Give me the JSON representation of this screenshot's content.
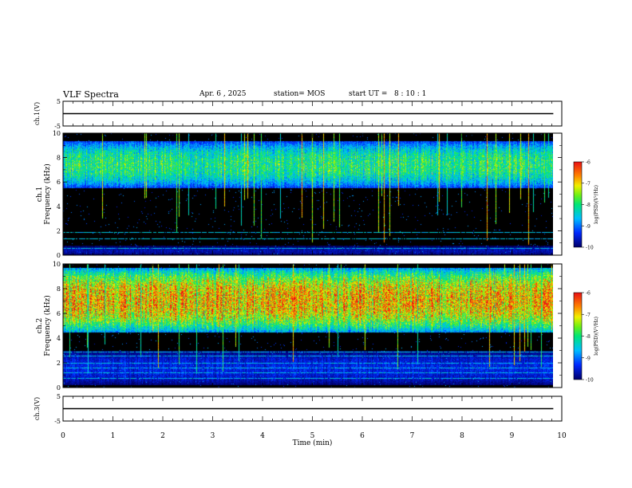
{
  "header": {
    "title": "VLF Spectra",
    "date": "Apr. 6 , 2025",
    "station": "station= MOS",
    "start": "start UT =   8 : 10 : 1"
  },
  "chart_data": [
    {
      "type": "line",
      "panel": "ch1-waveform",
      "ylabel": "ch.1(V)",
      "ylim": [
        -5,
        5
      ],
      "yticks": [
        "5",
        "-5"
      ],
      "series": [
        {
          "x": [
            0,
            9.83
          ],
          "y": [
            0,
            0
          ]
        }
      ]
    },
    {
      "type": "heatmap",
      "panel": "ch1-spectrogram",
      "ylabel": "ch.1 Frequency (kHz)",
      "ylim": [
        0,
        10
      ],
      "yticks": [
        "0",
        "2",
        "4",
        "6",
        "8",
        "10"
      ],
      "xlim": [
        0,
        10
      ],
      "data_end_min": 9.83,
      "bands": [
        {
          "from_khz": 5.5,
          "to_khz": 9.4,
          "peak": 0.62
        },
        {
          "from_khz": 0.0,
          "to_khz": 0.8,
          "peak": 0.18
        }
      ],
      "lines_khz": [
        0.6,
        1.4,
        1.9
      ],
      "colorbar": {
        "label": "log(PSD)(V²/Hz)",
        "min": -10,
        "max": -6,
        "ticks": [
          "-6",
          "-7",
          "-8",
          "-9",
          "-10"
        ]
      }
    },
    {
      "type": "heatmap",
      "panel": "ch2-spectrogram",
      "ylabel": "ch.2 Frequency (kHz)",
      "ylim": [
        0,
        10
      ],
      "yticks": [
        "0",
        "2",
        "4",
        "6",
        "8",
        "10"
      ],
      "xlim": [
        0,
        10
      ],
      "data_end_min": 9.83,
      "bands": [
        {
          "from_khz": 4.5,
          "to_khz": 9.7,
          "peak": 0.92
        },
        {
          "from_khz": 0.2,
          "to_khz": 3.0,
          "peak": 0.25
        }
      ],
      "lines_khz": [
        0.8,
        1.2,
        1.6,
        2.0,
        2.6,
        2.9
      ],
      "colorbar": {
        "label": "log(PSD)(V²/Hz)",
        "min": -10,
        "max": -6,
        "ticks": [
          "-6",
          "-7",
          "-8",
          "-9",
          "-10"
        ]
      }
    },
    {
      "type": "line",
      "panel": "ch3-waveform",
      "ylabel": "ch.3(V)",
      "ylim": [
        -5,
        5
      ],
      "yticks": [
        "5",
        "-5"
      ],
      "xlabel": "Time (min)",
      "xlim": [
        0,
        10
      ],
      "xticks": [
        "0",
        "1",
        "2",
        "3",
        "4",
        "5",
        "6",
        "7",
        "8",
        "9",
        "10"
      ],
      "series": [
        {
          "x": [
            0,
            9.83
          ],
          "y": [
            0,
            0
          ]
        }
      ]
    }
  ]
}
